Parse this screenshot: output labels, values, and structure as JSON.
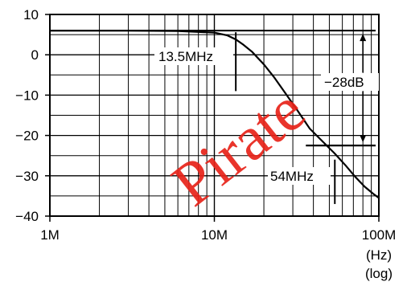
{
  "chart_data": {
    "type": "line",
    "title": "",
    "x_scale": "log",
    "xlim": [
      1000000,
      100000000
    ],
    "ylim": [
      -40,
      10
    ],
    "x_tick_labels": [
      "1M",
      "10M",
      "100M"
    ],
    "x_unit_labels": [
      "(Hz)",
      "(log)"
    ],
    "y_ticks": [
      10,
      0,
      -10,
      -20,
      -30,
      -40
    ],
    "y_tick_labels": [
      "10",
      "0",
      "−10",
      "−20",
      "−30",
      "−40"
    ],
    "grid": true,
    "series": [
      {
        "x": [
          1000000,
          3000000,
          6000000,
          10000000,
          12000000,
          13500000,
          15000000,
          17000000,
          20000000,
          23000000,
          27000000,
          32000000,
          38000000,
          45000000,
          54000000,
          63000000,
          72000000,
          82000000,
          92000000,
          100000000
        ],
        "y": [
          6,
          6,
          5.9,
          5.5,
          4.8,
          3.8,
          2.5,
          0.7,
          -2.4,
          -5.5,
          -9.5,
          -13.8,
          -18.3,
          -21.3,
          -24.5,
          -27.5,
          -30.3,
          -32.7,
          -34.4,
          -35.5
        ]
      }
    ],
    "reference_levels": [
      {
        "level": 6
      },
      {
        "level": -22.5
      }
    ],
    "annotations": {
      "f1": {
        "label": "13.5MHz",
        "x": 13500000
      },
      "f2": {
        "label": "54MHz",
        "x": 54000000
      },
      "delta": {
        "label": "−28dB",
        "x": 80000000,
        "from": 6,
        "to": -22.5
      }
    },
    "watermark": "Pirate"
  },
  "colors": {
    "ink": "#000000",
    "watermark": "#e8231a"
  }
}
